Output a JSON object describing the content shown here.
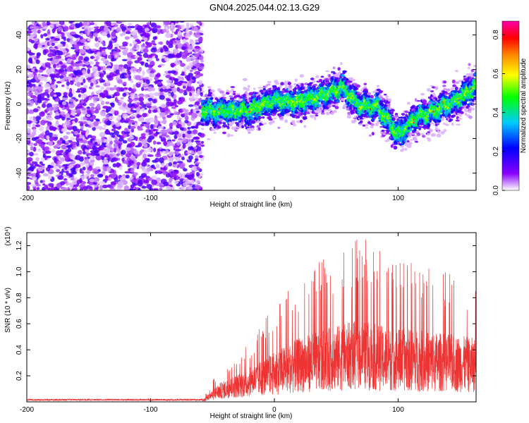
{
  "title": "GN04.2025.044.02.13.G29",
  "chart_data": [
    {
      "type": "heatmap",
      "xlabel": "Height of straight line (km)",
      "ylabel": "Frequency (Hz)",
      "xlim": [
        -200,
        163
      ],
      "ylim": [
        -50,
        48
      ],
      "xticks": [
        -200,
        -100,
        0,
        100
      ],
      "yticks": [
        -40,
        -20,
        0,
        20,
        40
      ],
      "colorbar": {
        "label": "Normalized spectral amplitude",
        "range": [
          0.0,
          0.87
        ],
        "ticks": [
          "0.0",
          "0.2",
          "0.4",
          "0.6",
          "0.8"
        ],
        "colormap": [
          "#ffffff",
          "#8800ff",
          "#0000ff",
          "#00ccff",
          "#00ff00",
          "#ffff00",
          "#ff8800",
          "#ff0000",
          "#ff00aa"
        ]
      },
      "noise_region_x": [
        -200,
        -58
      ],
      "center_track": [
        {
          "x": -58,
          "f": -4
        },
        {
          "x": -40,
          "f": -4
        },
        {
          "x": -20,
          "f": -4
        },
        {
          "x": 0,
          "f": 2
        },
        {
          "x": 20,
          "f": 1
        },
        {
          "x": 40,
          "f": 5
        },
        {
          "x": 55,
          "f": 10
        },
        {
          "x": 70,
          "f": -1
        },
        {
          "x": 85,
          "f": -2
        },
        {
          "x": 100,
          "f": -18
        },
        {
          "x": 115,
          "f": -8
        },
        {
          "x": 130,
          "f": -4
        },
        {
          "x": 145,
          "f": 1
        },
        {
          "x": 163,
          "f": 10
        }
      ]
    },
    {
      "type": "line",
      "xlabel": "Height of straight line (km)",
      "ylabel": "SNR (10 * v/v)",
      "y_multiplier": "(x10⁴)",
      "xlim": [
        -200,
        163
      ],
      "ylim": [
        0,
        1.3
      ],
      "xticks": [
        -200,
        -100,
        0,
        100
      ],
      "yticks": [
        0.2,
        0.4,
        0.6,
        0.8,
        1.0,
        1.2
      ],
      "series": [
        {
          "color": "#ee3333",
          "envelope": [
            {
              "x": -200,
              "mean": 0.01,
              "max": 0.02
            },
            {
              "x": -58,
              "mean": 0.01,
              "max": 0.02
            },
            {
              "x": -45,
              "mean": 0.08,
              "max": 0.25
            },
            {
              "x": -20,
              "mean": 0.15,
              "max": 0.45
            },
            {
              "x": 0,
              "mean": 0.22,
              "max": 0.75
            },
            {
              "x": 20,
              "mean": 0.28,
              "max": 0.95
            },
            {
              "x": 40,
              "mean": 0.32,
              "max": 1.1
            },
            {
              "x": 60,
              "mean": 0.35,
              "max": 1.2
            },
            {
              "x": 70,
              "mean": 0.36,
              "max": 1.28
            },
            {
              "x": 90,
              "mean": 0.33,
              "max": 1.15
            },
            {
              "x": 110,
              "mean": 0.32,
              "max": 1.1
            },
            {
              "x": 140,
              "mean": 0.3,
              "max": 1.0
            },
            {
              "x": 163,
              "mean": 0.28,
              "max": 0.95
            }
          ]
        }
      ]
    }
  ]
}
